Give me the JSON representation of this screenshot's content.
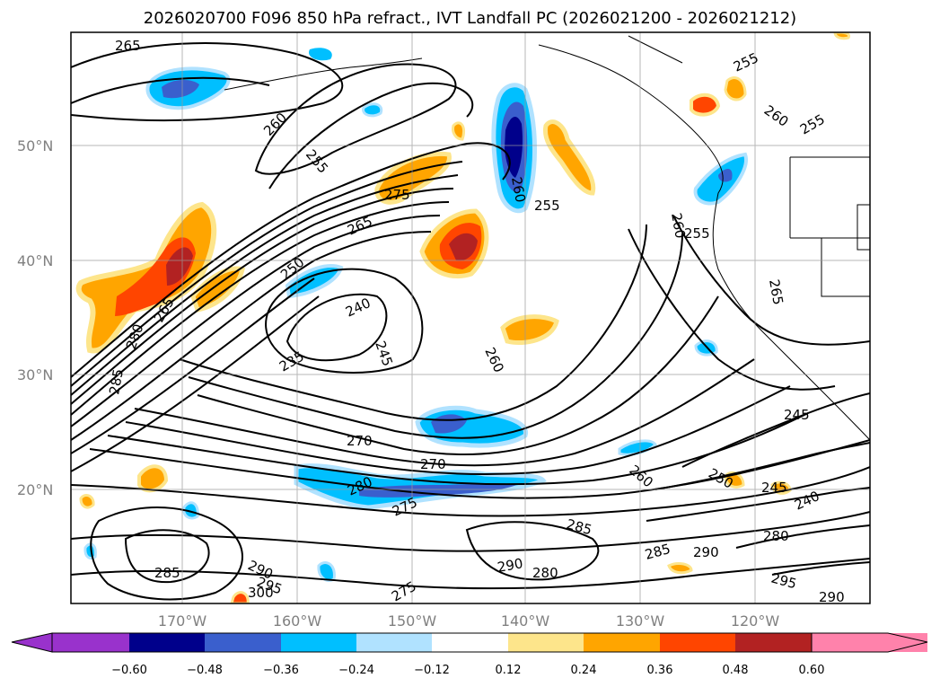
{
  "title": "2026020700 F096 850 hPa refract., IVT Landfall PC (2026021200 - 2026021212)",
  "lat_labels": [
    "50°N",
    "40°N",
    "30°N",
    "20°N"
  ],
  "lon_labels": [
    "170°W",
    "160°W",
    "150°W",
    "140°W",
    "130°W",
    "120°W"
  ],
  "contour_labels": [
    "265",
    "260",
    "255",
    "275",
    "265",
    "250",
    "240",
    "235",
    "245",
    "260",
    "255",
    "260",
    "255",
    "260",
    "255",
    "265",
    "270",
    "275",
    "280",
    "285",
    "290",
    "300",
    "295",
    "285",
    "290",
    "280",
    "275",
    "270",
    "255",
    "260",
    "250",
    "245",
    "240",
    "280",
    "285",
    "290",
    "295",
    "290",
    "245",
    "260",
    "265",
    "280",
    "285"
  ],
  "colorbar": {
    "ticks": [
      "−0.60",
      "−0.48",
      "−0.36",
      "−0.24",
      "−0.12",
      "0.12",
      "0.24",
      "0.36",
      "0.48",
      "0.60"
    ],
    "colors": [
      "#9932cc",
      "#00008b",
      "#3a5fcd",
      "#00bfff",
      "#b0e2ff",
      "#ffffff",
      "#fde58b",
      "#ffa500",
      "#ff4500",
      "#b22222",
      "#ff82ab"
    ]
  }
}
